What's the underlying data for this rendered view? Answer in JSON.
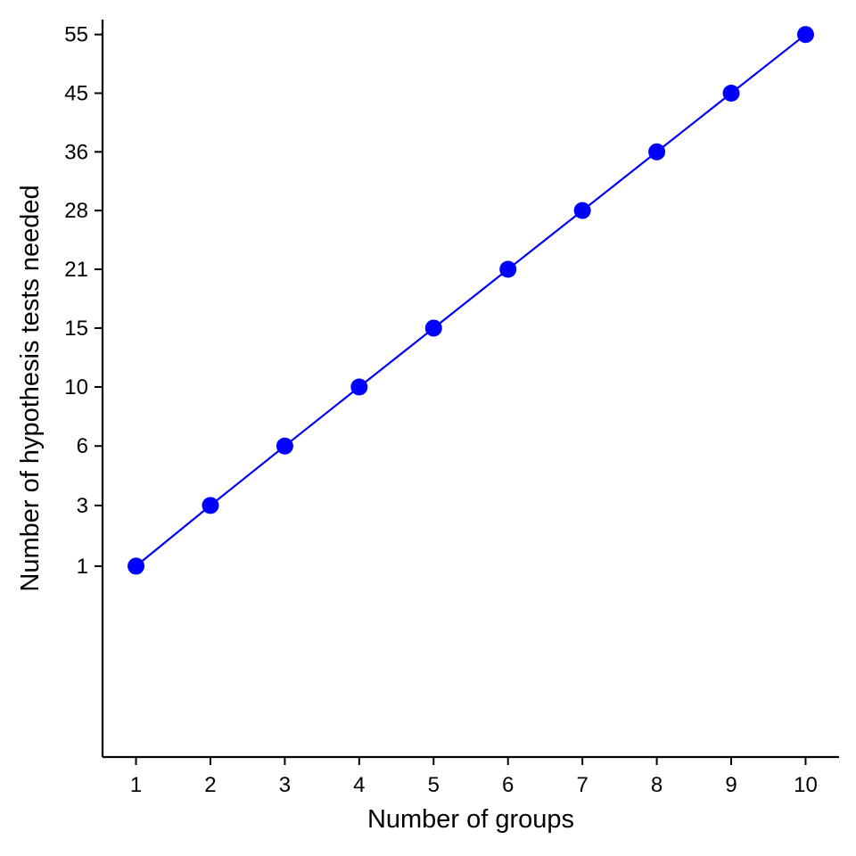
{
  "chart_data": {
    "type": "line",
    "title": "",
    "xlabel": "Number of groups",
    "ylabel": "Number of hypothesis tests needed",
    "x": [
      1,
      2,
      3,
      4,
      5,
      6,
      7,
      8,
      9,
      10
    ],
    "series": [
      {
        "values": [
          1,
          3,
          6,
          10,
          15,
          21,
          28,
          36,
          45,
          55
        ],
        "color": "#0000ff",
        "marker": "circle"
      }
    ],
    "x_ticks": [
      "1",
      "2",
      "3",
      "4",
      "5",
      "6",
      "7",
      "8",
      "9",
      "10"
    ],
    "y_ticks": [
      "1",
      "3",
      "6",
      "10",
      "15",
      "21",
      "28",
      "36",
      "45",
      "55"
    ],
    "xlim": [
      0.55,
      10.45
    ],
    "ylim": [
      -1.7,
      57.7
    ],
    "y_scale": "sqrt",
    "grid": false,
    "legend": "none"
  }
}
